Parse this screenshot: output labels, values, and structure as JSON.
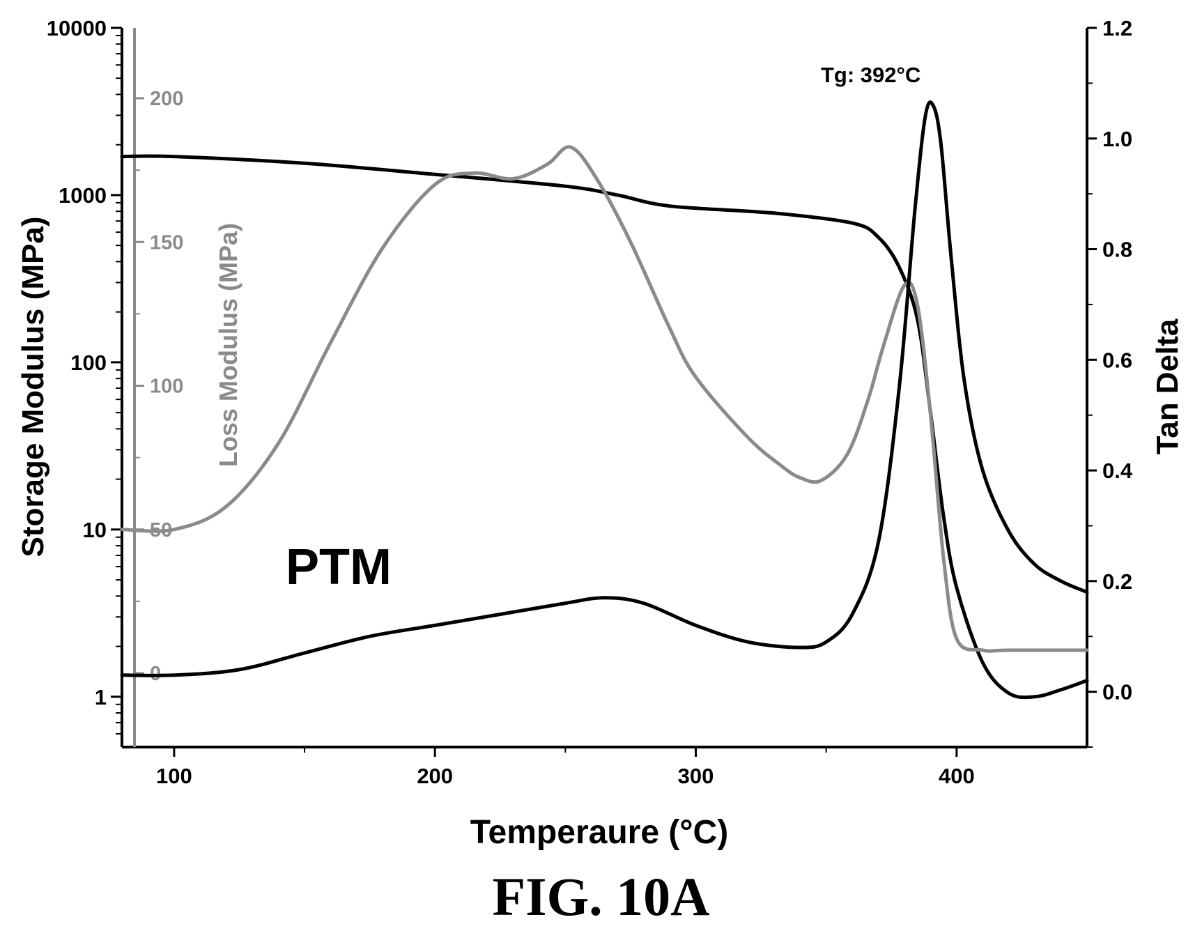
{
  "chart_data": {
    "type": "line",
    "xlabel": "Temperaure (°C)",
    "ylabel_left": "Storage Modulus (MPa)",
    "ylabel_loss": "Loss Modulus (MPa)",
    "ylabel_right": "Tan Delta",
    "sample_label": "PTM",
    "annotation": "Tg: 392°C",
    "xlim": [
      80,
      450
    ],
    "x_ticks": [
      100,
      200,
      300,
      400
    ],
    "y_left": {
      "scale": "log",
      "lim": [
        0.5,
        10000
      ],
      "ticks": [
        1,
        10,
        100,
        1000,
        10000
      ]
    },
    "y_loss": {
      "lim": [
        0,
        215
      ],
      "ticks": [
        0,
        50,
        100,
        150,
        200
      ]
    },
    "y_right": {
      "lim": [
        -0.1,
        1.2
      ],
      "ticks": [
        0.0,
        0.2,
        0.4,
        0.6,
        0.8,
        1.0,
        1.2
      ]
    },
    "series": [
      {
        "axis": "left",
        "color": "#000000",
        "x": [
          80,
          100,
          150,
          200,
          250,
          270,
          290,
          330,
          360,
          370,
          378,
          385,
          390,
          395,
          400,
          410,
          420,
          430,
          440,
          450
        ],
        "y": [
          1700,
          1700,
          1550,
          1330,
          1130,
          1000,
          860,
          780,
          680,
          560,
          370,
          180,
          50,
          12,
          4.5,
          1.6,
          1.05,
          1.0,
          1.1,
          1.25
        ]
      },
      {
        "axis": "loss",
        "color": "#8a8a8a",
        "x": [
          80,
          100,
          120,
          140,
          160,
          180,
          200,
          215,
          230,
          243,
          252,
          262,
          275,
          290,
          300,
          320,
          333,
          340,
          348,
          358,
          366,
          372,
          380,
          385,
          390,
          395,
          400,
          410,
          420,
          450
        ],
        "y": [
          50,
          50,
          58,
          80,
          115,
          148,
          170,
          174,
          172,
          177,
          183,
          172,
          150,
          120,
          103,
          82,
          72,
          68,
          67,
          76,
          95,
          114,
          135,
          128,
          90,
          40,
          12,
          8,
          8,
          8
        ]
      },
      {
        "axis": "right",
        "color": "#000000",
        "x": [
          80,
          100,
          125,
          150,
          175,
          200,
          225,
          250,
          265,
          280,
          300,
          320,
          340,
          350,
          360,
          370,
          378,
          384,
          388,
          391,
          394,
          398,
          403,
          410,
          420,
          430,
          440,
          450
        ],
        "y": [
          0.03,
          0.03,
          0.04,
          0.07,
          0.1,
          0.12,
          0.14,
          0.16,
          0.17,
          0.16,
          0.12,
          0.09,
          0.08,
          0.09,
          0.14,
          0.27,
          0.55,
          0.87,
          1.04,
          1.06,
          0.99,
          0.78,
          0.56,
          0.4,
          0.29,
          0.23,
          0.2,
          0.18
        ]
      }
    ]
  },
  "figure": {
    "caption": "FIG. 10A"
  }
}
